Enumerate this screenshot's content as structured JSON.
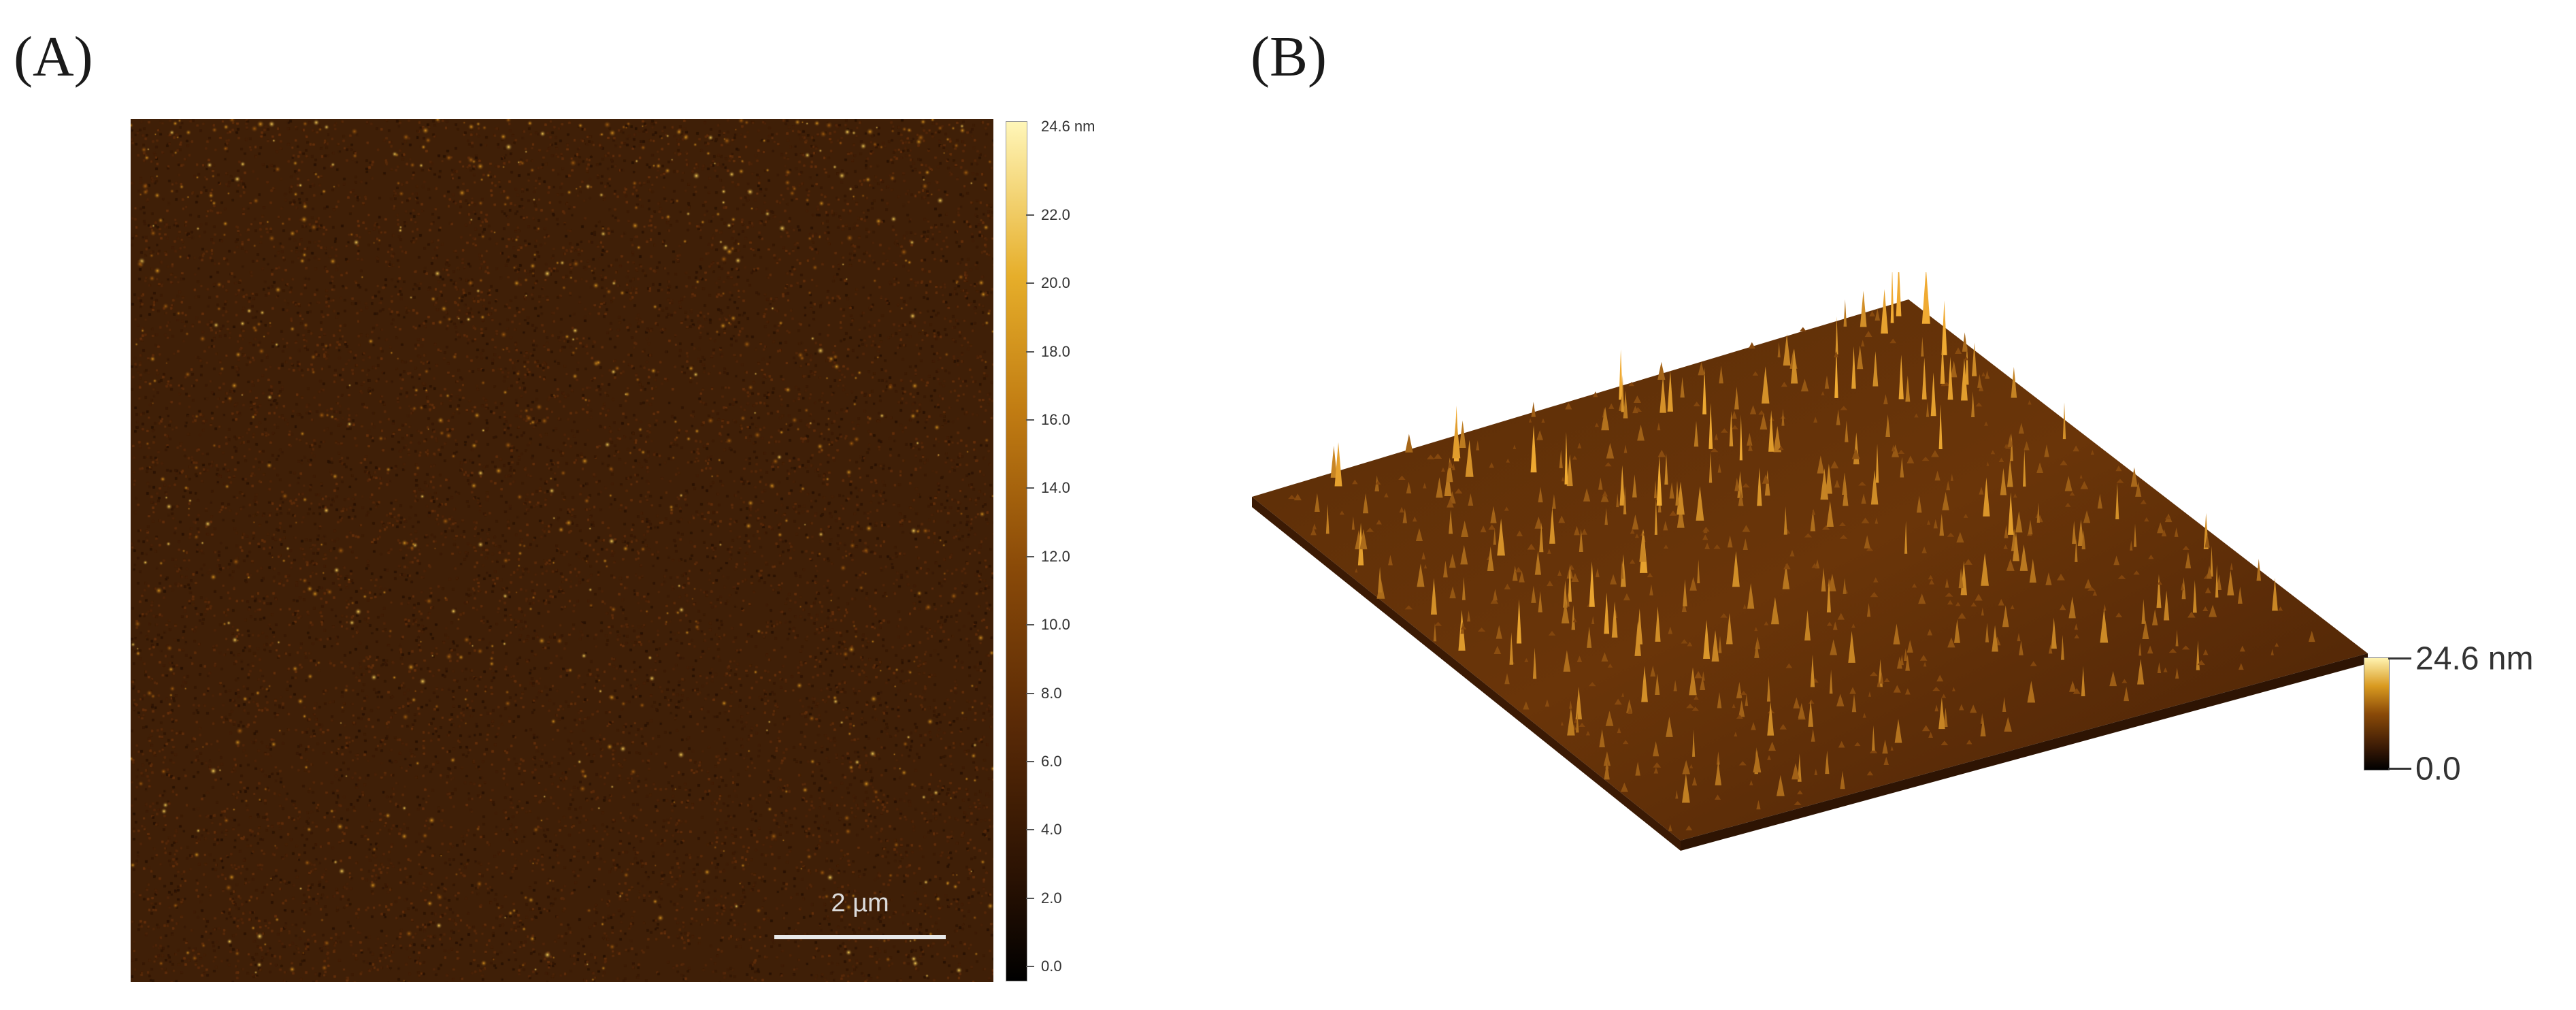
{
  "panels": {
    "a": {
      "label": "(A)",
      "scale_bar": "2 µm",
      "colorbar": {
        "max_label": "24.6 nm",
        "ticks": [
          "22.0",
          "20.0",
          "18.0",
          "16.0",
          "14.0",
          "12.0",
          "10.0",
          "8.0",
          "6.0",
          "4.0",
          "2.0",
          "0.0"
        ]
      }
    },
    "b": {
      "label": "(B)",
      "colorbar": {
        "max_label": "24.6 nm",
        "min_label": "0.0"
      }
    }
  },
  "colors": {
    "background_dark": "#3a1c06",
    "feature_bright": "#f5c842"
  }
}
